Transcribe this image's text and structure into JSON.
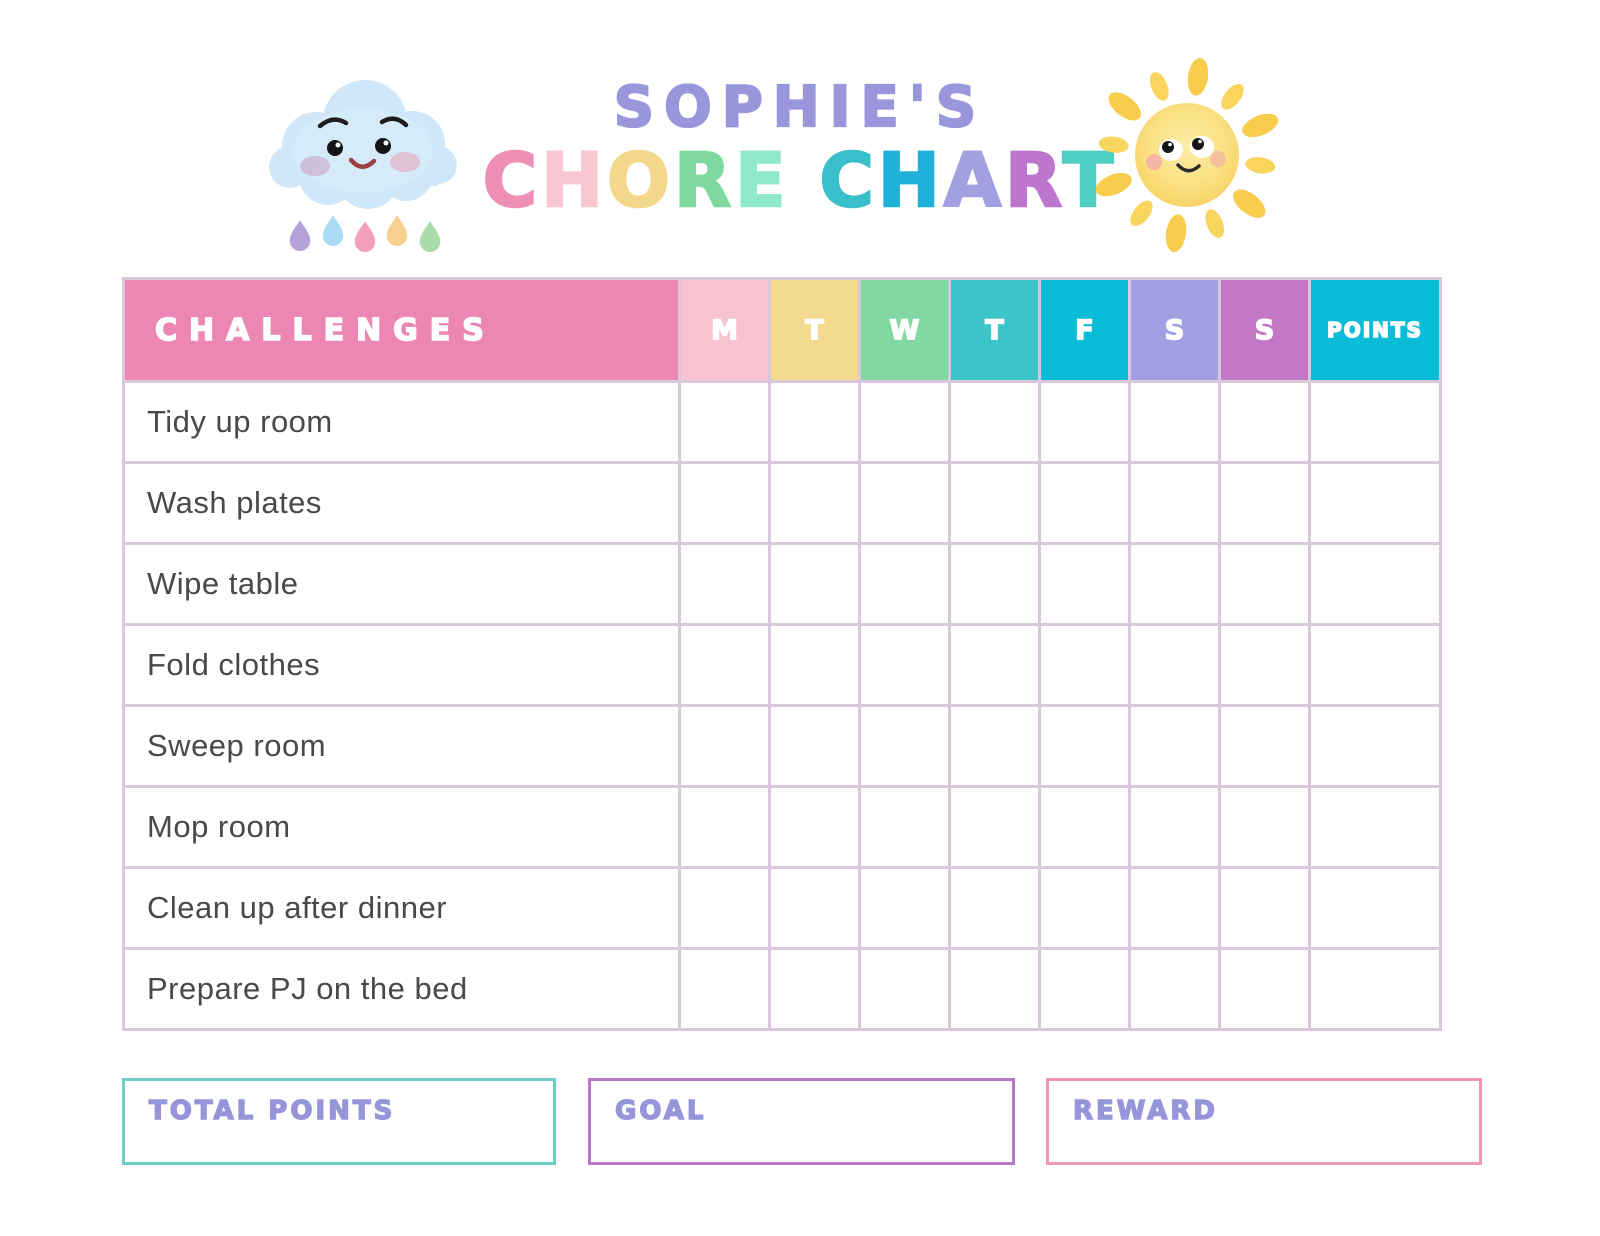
{
  "header": {
    "name_line": "SOPHIE'S",
    "name_color": "#9a96dc",
    "title_words": [
      {
        "letters": [
          {
            "ch": "C",
            "color": "#ee8fb4"
          },
          {
            "ch": "H",
            "color": "#f8c7d1"
          },
          {
            "ch": "O",
            "color": "#f3d88b"
          },
          {
            "ch": "R",
            "color": "#7fd89e"
          },
          {
            "ch": "E",
            "color": "#90e8cc"
          }
        ]
      },
      {
        "letters": [
          {
            "ch": "C",
            "color": "#38bfc9"
          },
          {
            "ch": "H",
            "color": "#1eb2d9"
          },
          {
            "ch": "A",
            "color": "#a3a0e1"
          },
          {
            "ch": "R",
            "color": "#bc76ce"
          },
          {
            "ch": "T",
            "color": "#4fcfc2"
          }
        ]
      }
    ],
    "cloud_icon": "cloud-with-raindrops",
    "sun_icon": "smiling-sun",
    "raindrop_colors": [
      "#b5a1d8",
      "#aadcf5",
      "#f2a0ba",
      "#f7cf8e",
      "#a8dca8"
    ]
  },
  "table": {
    "grid_line_color": "#d9c8dc",
    "challenges_header": {
      "label": "CHALLENGES",
      "bg": "#ec86b5"
    },
    "day_headers": [
      {
        "label": "M",
        "bg": "#f8c3d0"
      },
      {
        "label": "T",
        "bg": "#f4da8e"
      },
      {
        "label": "W",
        "bg": "#82d8a2"
      },
      {
        "label": "T",
        "bg": "#3cc5c8"
      },
      {
        "label": "F",
        "bg": "#0bbcd8"
      },
      {
        "label": "S",
        "bg": "#9f9fe1"
      },
      {
        "label": "S",
        "bg": "#c277c7"
      }
    ],
    "points_header": {
      "label": "POINTS",
      "bg": "#0bbcd8"
    },
    "chores": [
      "Tidy up room",
      "Wash plates",
      "Wipe table",
      "Fold clothes",
      "Sweep room",
      "Mop room",
      "Clean up after dinner",
      "Prepare PJ on the bed"
    ]
  },
  "footer": {
    "label_color": "#9795d9",
    "boxes": [
      {
        "label": "TOTAL POINTS",
        "border": "#6ecec5"
      },
      {
        "label": "GOAL",
        "border": "#b878c8"
      },
      {
        "label": "REWARD",
        "border": "#f098b2"
      }
    ]
  }
}
